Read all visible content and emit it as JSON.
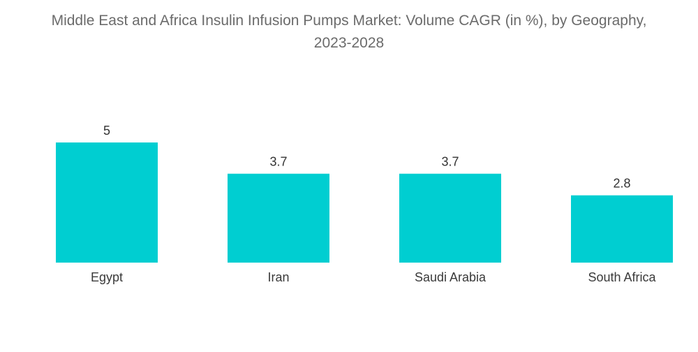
{
  "chart_data": {
    "type": "bar",
    "title_lines": [
      "Middle East and Africa Insulin Infusion Pumps Market: Volume CAGR (in %), by Geography,",
      "2023-2028"
    ],
    "categories": [
      "Egypt",
      "Iran",
      "Saudi Arabia",
      "South Africa"
    ],
    "values": [
      5,
      3.7,
      3.7,
      2.8
    ],
    "value_labels": [
      "5",
      "3.7",
      "3.7",
      "2.8"
    ],
    "xlabel": "",
    "ylabel": "",
    "ylim": [
      0,
      5
    ],
    "grid": false,
    "legend": "none",
    "colors": {
      "bar": "#00CED1"
    }
  }
}
